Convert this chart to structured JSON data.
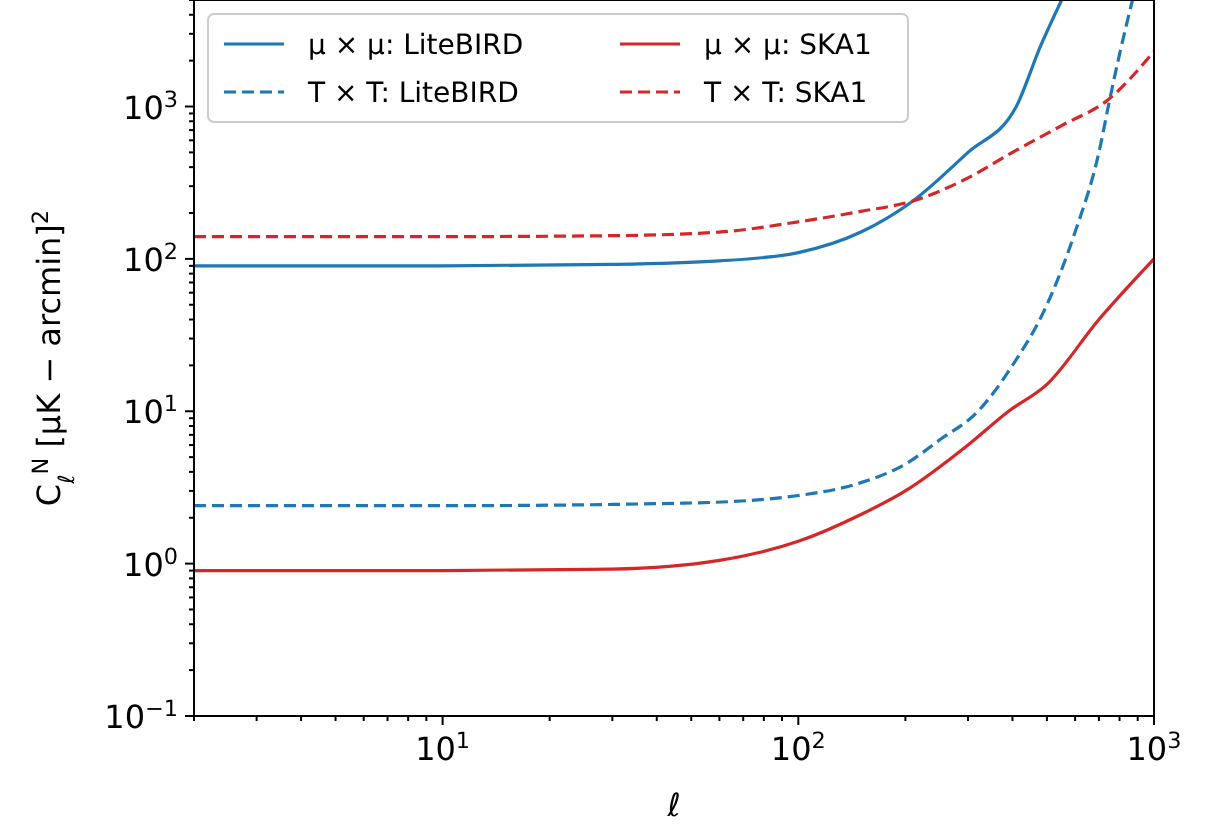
{
  "chart_data": {
    "type": "line",
    "xlabel": "ℓ",
    "ylabel": "C$_{ℓ}$$^{N}$ [μK − arcmin]$^{2}$",
    "log": "xy",
    "legend": "top left",
    "grid": false,
    "xlim": [
      2,
      1000
    ],
    "ylim": [
      0.1,
      5000
    ],
    "xticks": [
      {
        "value": 10,
        "label": "10$^{1}$"
      },
      {
        "value": 100,
        "label": "10$^{2}$"
      },
      {
        "value": 1000,
        "label": "10$^{3}$"
      },
      {
        "value": 2,
        "label": null
      },
      {
        "value": 3,
        "label": null
      },
      {
        "value": 4,
        "label": null
      },
      {
        "value": 5,
        "label": null
      },
      {
        "value": 6,
        "label": null
      },
      {
        "value": 7,
        "label": null
      },
      {
        "value": 8,
        "label": null
      },
      {
        "value": 9,
        "label": null
      },
      {
        "value": 20,
        "label": null
      },
      {
        "value": 30,
        "label": null
      },
      {
        "value": 40,
        "label": null
      },
      {
        "value": 50,
        "label": null
      },
      {
        "value": 60,
        "label": null
      },
      {
        "value": 70,
        "label": null
      },
      {
        "value": 80,
        "label": null
      },
      {
        "value": 90,
        "label": null
      },
      {
        "value": 200,
        "label": null
      },
      {
        "value": 300,
        "label": null
      },
      {
        "value": 400,
        "label": null
      },
      {
        "value": 500,
        "label": null
      },
      {
        "value": 600,
        "label": null
      },
      {
        "value": 700,
        "label": null
      },
      {
        "value": 800,
        "label": null
      },
      {
        "value": 900,
        "label": null
      }
    ],
    "yticks": [
      {
        "value": 0.1,
        "label": "10$^{−1}$"
      },
      {
        "value": 1,
        "label": "10$^{0}$"
      },
      {
        "value": 10,
        "label": "10$^{1}$"
      },
      {
        "value": 100,
        "label": "10$^{2}$"
      },
      {
        "value": 1000,
        "label": "10$^{3}$"
      },
      {
        "value": 0.2,
        "label": null
      },
      {
        "value": 0.3,
        "label": null
      },
      {
        "value": 0.4,
        "label": null
      },
      {
        "value": 0.5,
        "label": null
      },
      {
        "value": 0.6,
        "label": null
      },
      {
        "value": 0.7,
        "label": null
      },
      {
        "value": 0.8,
        "label": null
      },
      {
        "value": 0.9,
        "label": null
      },
      {
        "value": 2,
        "label": null
      },
      {
        "value": 3,
        "label": null
      },
      {
        "value": 4,
        "label": null
      },
      {
        "value": 5,
        "label": null
      },
      {
        "value": 6,
        "label": null
      },
      {
        "value": 7,
        "label": null
      },
      {
        "value": 8,
        "label": null
      },
      {
        "value": 9,
        "label": null
      },
      {
        "value": 20,
        "label": null
      },
      {
        "value": 30,
        "label": null
      },
      {
        "value": 40,
        "label": null
      },
      {
        "value": 50,
        "label": null
      },
      {
        "value": 60,
        "label": null
      },
      {
        "value": 70,
        "label": null
      },
      {
        "value": 80,
        "label": null
      },
      {
        "value": 90,
        "label": null
      },
      {
        "value": 200,
        "label": null
      },
      {
        "value": 300,
        "label": null
      },
      {
        "value": 400,
        "label": null
      },
      {
        "value": 500,
        "label": null
      },
      {
        "value": 600,
        "label": null
      },
      {
        "value": 700,
        "label": null
      },
      {
        "value": 800,
        "label": null
      },
      {
        "value": 900,
        "label": null
      },
      {
        "value": 2000,
        "label": null
      },
      {
        "value": 3000,
        "label": null
      },
      {
        "value": 4000,
        "label": null
      },
      {
        "value": 5000,
        "label": null
      }
    ],
    "series": [
      {
        "name": "μ × μ: LiteBIRD",
        "color": "#1f77b4",
        "line_style": "solid",
        "x": [
          2,
          10,
          30,
          60,
          100,
          150,
          210,
          300,
          410,
          480,
          550
        ],
        "values": [
          90,
          90,
          92,
          97,
          110,
          150,
          240,
          500,
          1000,
          2500,
          5000
        ]
      },
      {
        "name": "T × T: LiteBIRD",
        "color": "#1f77b4",
        "line_style": "dashed",
        "x": [
          2,
          10,
          50,
          100,
          150,
          200,
          250,
          320,
          400,
          500,
          600,
          700,
          750,
          800,
          870
        ],
        "values": [
          2.4,
          2.4,
          2.5,
          2.8,
          3.4,
          4.5,
          6.5,
          10,
          20,
          50,
          150,
          500,
          1100,
          2200,
          5000
        ]
      },
      {
        "name": "μ × μ: SKA1",
        "color": "#d62728",
        "line_style": "solid",
        "x": [
          2,
          10,
          30,
          60,
          100,
          150,
          200,
          300,
          390,
          500,
          700,
          1000
        ],
        "values": [
          0.9,
          0.9,
          0.92,
          1.05,
          1.4,
          2.1,
          3,
          6,
          10,
          15,
          40,
          100
        ]
      },
      {
        "name": "T × T: SKA1",
        "color": "#d62728",
        "line_style": "dashed",
        "x": [
          2,
          10,
          30,
          60,
          100,
          150,
          210,
          300,
          400,
          550,
          740,
          1000
        ],
        "values": [
          140,
          140,
          142,
          150,
          175,
          205,
          240,
          340,
          500,
          750,
          1100,
          2300
        ]
      }
    ]
  }
}
